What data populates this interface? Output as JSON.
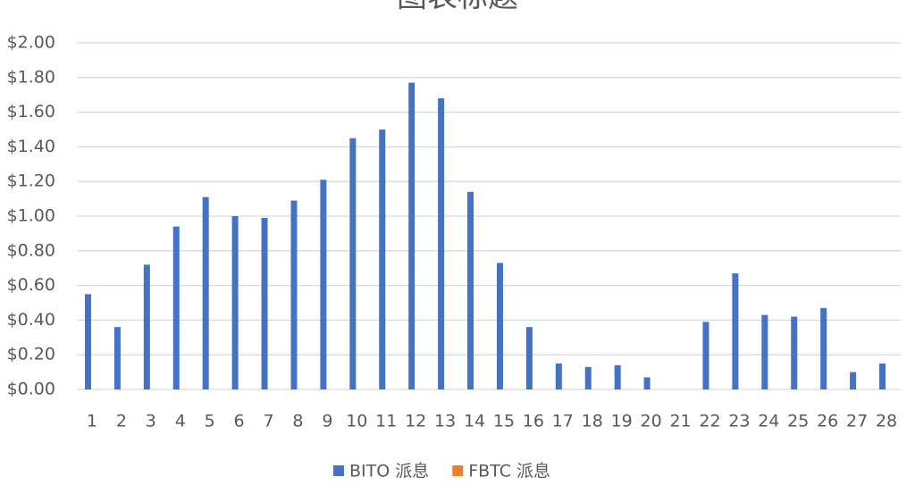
{
  "chart_data": {
    "type": "bar",
    "title": "图表标题",
    "categories": [
      "1",
      "2",
      "3",
      "4",
      "5",
      "6",
      "7",
      "8",
      "9",
      "10",
      "11",
      "12",
      "13",
      "14",
      "15",
      "16",
      "17",
      "18",
      "19",
      "20",
      "21",
      "22",
      "23",
      "24",
      "25",
      "26",
      "27",
      "28"
    ],
    "series": [
      {
        "name": "BITO 派息",
        "color": "#4472c4",
        "values": [
          0.55,
          0.36,
          0.72,
          0.94,
          1.11,
          1.0,
          0.99,
          1.09,
          1.21,
          1.45,
          1.5,
          1.77,
          1.68,
          1.14,
          0.73,
          0.36,
          0.15,
          0.13,
          0.14,
          0.07,
          null,
          0.39,
          0.67,
          0.43,
          0.42,
          0.47,
          0.1,
          0.15
        ]
      },
      {
        "name": "FBTC 派息",
        "color": "#ed7d31",
        "values": [
          null,
          null,
          null,
          null,
          null,
          null,
          null,
          null,
          null,
          null,
          null,
          null,
          null,
          null,
          null,
          null,
          null,
          null,
          null,
          null,
          null,
          null,
          null,
          null,
          null,
          null,
          null,
          null
        ]
      }
    ],
    "ylim": [
      0,
      2
    ],
    "yticks": [
      {
        "value": 0,
        "label": "$0.00"
      },
      {
        "value": 0.2,
        "label": "$0.20"
      },
      {
        "value": 0.4,
        "label": "$0.40"
      },
      {
        "value": 0.6,
        "label": "$0.60"
      },
      {
        "value": 0.8,
        "label": "$0.80"
      },
      {
        "value": 1,
        "label": "$1.00"
      },
      {
        "value": 1.2,
        "label": "$1.20"
      },
      {
        "value": 1.4,
        "label": "$1.40"
      },
      {
        "value": 1.6,
        "label": "$1.60"
      },
      {
        "value": 1.8,
        "label": "$1.80"
      },
      {
        "value": 2,
        "label": "$2.00"
      }
    ],
    "grid": true,
    "legend": "bottom"
  }
}
